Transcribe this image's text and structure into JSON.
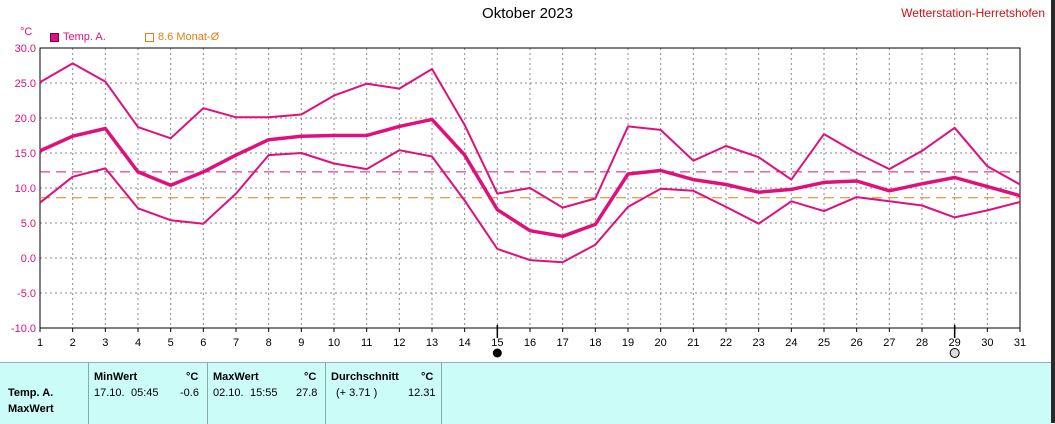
{
  "title": "Oktober 2023",
  "station": "Wetterstation-Herretshofen",
  "unit": "°C",
  "legend": {
    "series": "Temp. A.",
    "ref": "8.6 Monat-Ø"
  },
  "colors": {
    "series": "#e0107a",
    "ref": "#e08010",
    "grid": "#8a8a8a"
  },
  "chart_data": {
    "type": "line",
    "title": "Oktober 2023",
    "ylabel": "°C",
    "ylim": [
      -10,
      30
    ],
    "yticks": [
      "30.0",
      "25.0",
      "20.0",
      "15.0",
      "10.0",
      "5.0",
      "0.0",
      "-5.0",
      "-10.0"
    ],
    "x": [
      1,
      2,
      3,
      4,
      5,
      6,
      7,
      8,
      9,
      10,
      11,
      12,
      13,
      14,
      15,
      16,
      17,
      18,
      19,
      20,
      21,
      22,
      23,
      24,
      25,
      26,
      27,
      28,
      29,
      30,
      31
    ],
    "series": [
      {
        "role": "max",
        "values": [
          25.1,
          27.8,
          25.2,
          18.7,
          17.1,
          21.4,
          20.1,
          20.1,
          20.5,
          23.2,
          24.9,
          24.2,
          27.0,
          19.0,
          9.2,
          10.0,
          7.2,
          8.5,
          18.8,
          18.3,
          13.9,
          16.0,
          14.4,
          11.2,
          17.7,
          15.0,
          12.7,
          15.3,
          18.6,
          13.1,
          10.5
        ]
      },
      {
        "role": "mean",
        "values": [
          15.3,
          17.4,
          18.5,
          12.3,
          10.4,
          12.3,
          14.7,
          16.9,
          17.4,
          17.5,
          17.5,
          18.8,
          19.8,
          14.7,
          6.9,
          3.9,
          3.1,
          4.8,
          12.0,
          12.5,
          11.2,
          10.5,
          9.4,
          9.8,
          10.8,
          11.0,
          9.6,
          10.6,
          11.5,
          10.2,
          8.9
        ]
      },
      {
        "role": "min",
        "values": [
          7.9,
          11.6,
          12.8,
          7.1,
          5.4,
          4.9,
          9.2,
          14.7,
          15.0,
          13.5,
          12.7,
          15.4,
          14.5,
          8.2,
          1.3,
          -0.3,
          -0.6,
          1.9,
          7.3,
          9.9,
          9.6,
          7.3,
          4.9,
          8.1,
          6.7,
          8.7,
          8.1,
          7.5,
          5.8,
          6.8,
          8.0
        ]
      }
    ],
    "series_mean_line": 12.31,
    "reference_line": 8.6,
    "markers": [
      {
        "day": 15,
        "symbol": "filled-circle"
      },
      {
        "day": 29,
        "symbol": "open-circle"
      }
    ],
    "grid": true
  },
  "stats": {
    "row_labels": [
      "Temp. A.",
      "MaxWert"
    ],
    "min": {
      "header": "MinWert",
      "unit": "°C",
      "date": "17.10.",
      "time": "05:45",
      "value": "-0.6"
    },
    "max": {
      "header": "MaxWert",
      "unit": "°C",
      "date": "02.10.",
      "time": "15:55",
      "value": "27.8"
    },
    "avg": {
      "header": "Durchschnitt",
      "unit": "°C",
      "delta": "(+ 3.71 )",
      "value": "12.31"
    }
  }
}
